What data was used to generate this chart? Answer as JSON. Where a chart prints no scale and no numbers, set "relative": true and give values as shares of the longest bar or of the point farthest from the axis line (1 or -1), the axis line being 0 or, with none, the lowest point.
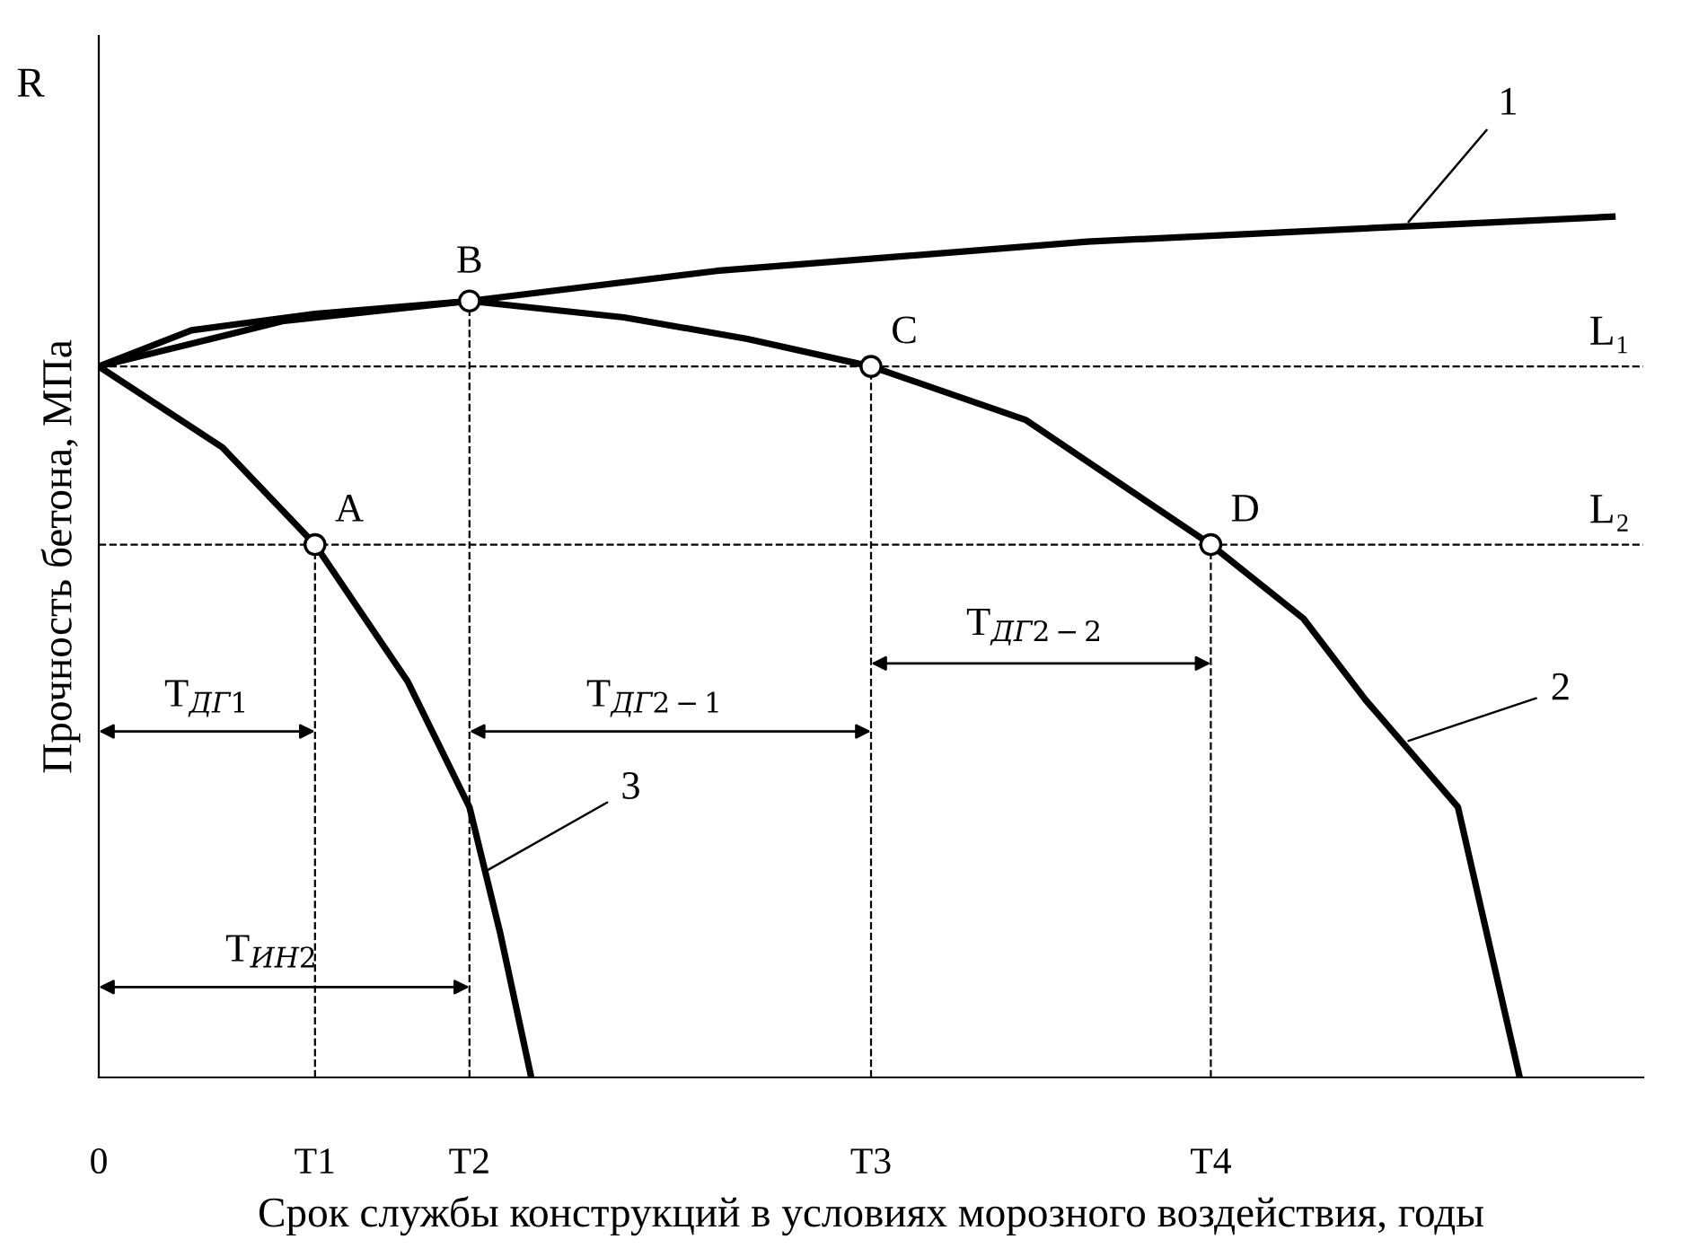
{
  "chart_data": {
    "type": "line",
    "relative": true,
    "xlabel": "Срок службы конструкций в условиях морозного воздействия, годы",
    "ylabel": "Прочность бетона, МПа",
    "categories": [
      "0",
      null,
      null,
      null,
      null,
      null,
      null,
      "T1",
      null,
      null,
      null,
      null,
      "T2",
      null,
      null,
      null,
      null,
      null,
      null,
      null,
      null,
      null,
      null,
      null,
      null,
      "T3",
      null,
      null,
      null,
      null,
      null,
      null,
      null,
      null,
      null,
      null,
      "T4",
      null,
      null,
      null,
      null,
      null,
      null,
      null,
      null,
      null,
      null,
      null,
      null,
      null,
      null
    ],
    "grid": false,
    "legend": false,
    "marker": "none",
    "line_style": "solid",
    "series": [
      {
        "color": "#000000",
        "values": [
          0.826,
          null,
          null,
          0.868,
          null,
          null,
          null,
          0.887,
          null,
          null,
          null,
          null,
          0.902,
          null,
          null,
          null,
          null,
          null,
          null,
          null,
          0.937,
          null,
          null,
          null,
          null,
          null,
          null,
          null,
          null,
          null,
          null,
          null,
          0.971,
          null,
          null,
          null,
          null,
          null,
          null,
          null,
          null,
          null,
          null,
          null,
          null,
          null,
          null,
          null,
          null,
          1,
          null
        ]
      },
      {
        "color": "#000000",
        "values": [
          0.826,
          null,
          null,
          null,
          null,
          null,
          0.879,
          null,
          null,
          null,
          null,
          null,
          0.902,
          null,
          null,
          null,
          null,
          0.883,
          null,
          null,
          null,
          0.858,
          null,
          null,
          null,
          0.826,
          null,
          null,
          null,
          null,
          0.764,
          null,
          null,
          null,
          null,
          null,
          0.619,
          null,
          null,
          0.533,
          null,
          0.439,
          null,
          null,
          0.314,
          null,
          0,
          null,
          null,
          null,
          null
        ]
      },
      {
        "color": "#000000",
        "values": [
          0.826,
          null,
          null,
          null,
          0.732,
          null,
          null,
          0.619,
          null,
          null,
          0.46,
          null,
          0.314,
          0.167,
          0,
          null,
          null,
          null,
          null,
          null,
          null,
          null,
          null,
          null,
          null,
          null,
          null,
          null,
          null,
          null,
          null,
          null,
          null,
          null,
          null,
          null,
          null,
          null,
          null,
          null,
          null,
          null,
          null,
          null,
          null,
          null,
          null,
          null,
          null,
          null,
          null
        ]
      },
      {
        "color": "#000000",
        "marker": "triangle",
        "values": [
          0.402,
          null,
          null,
          null,
          null,
          null,
          null,
          0.402,
          null,
          null,
          null,
          null,
          null,
          null,
          null,
          null,
          null,
          null,
          null,
          null,
          null,
          null,
          null,
          null,
          null,
          null,
          null,
          null,
          null,
          null,
          null,
          null,
          null,
          null,
          null,
          null,
          null,
          null,
          null,
          null,
          null,
          null,
          null,
          null,
          null,
          null,
          null,
          null,
          null,
          null,
          null
        ]
      },
      {
        "color": "#000000",
        "marker": "triangle",
        "values": [
          0.105,
          null,
          null,
          null,
          null,
          null,
          null,
          null,
          null,
          null,
          null,
          null,
          0.105,
          null,
          null,
          null,
          null,
          null,
          null,
          null,
          null,
          null,
          null,
          null,
          null,
          null,
          null,
          null,
          null,
          null,
          null,
          null,
          null,
          null,
          null,
          null,
          null,
          null,
          null,
          null,
          null,
          null,
          null,
          null,
          null,
          null,
          null,
          null,
          null,
          null,
          null
        ]
      },
      {
        "color": "#000000",
        "marker": "triangle",
        "values": [
          null,
          null,
          null,
          null,
          null,
          null,
          null,
          null,
          null,
          null,
          null,
          null,
          0.402,
          null,
          null,
          null,
          null,
          null,
          null,
          null,
          null,
          null,
          null,
          null,
          null,
          0.402,
          null,
          null,
          null,
          null,
          null,
          null,
          null,
          null,
          null,
          null,
          null,
          null,
          null,
          null,
          null,
          null,
          null,
          null,
          null,
          null,
          null,
          null,
          null,
          null,
          null
        ]
      },
      {
        "color": "#000000",
        "marker": "triangle",
        "values": [
          null,
          null,
          null,
          null,
          null,
          null,
          null,
          null,
          null,
          null,
          null,
          null,
          null,
          null,
          null,
          null,
          null,
          null,
          null,
          null,
          null,
          null,
          null,
          null,
          null,
          0.481,
          null,
          null,
          null,
          null,
          null,
          null,
          null,
          null,
          null,
          null,
          0.481,
          null,
          null,
          null,
          null,
          null,
          null,
          null,
          null,
          null,
          null,
          null,
          null,
          null,
          null
        ]
      }
    ],
    "ref_lines": [
      {
        "axis": "y",
        "value": 0.826,
        "label": "L₁",
        "line_style": "dashed"
      },
      {
        "axis": "y",
        "value": 0.619,
        "label": "L₂",
        "line_style": "dashed"
      },
      {
        "axis": "x",
        "value": "T1",
        "line_style": "dashed"
      },
      {
        "axis": "x",
        "value": "T2",
        "line_style": "dashed"
      },
      {
        "axis": "x",
        "value": "T3",
        "line_style": "dashed"
      },
      {
        "axis": "x",
        "value": "T4",
        "line_style": "dashed"
      }
    ],
    "annotations": [
      "R",
      "T$_{ДГ1}$",
      "T$_{ИН2}$",
      "T$_{ДГ2−1}$",
      "T$_{ДГ2−2}$",
      "1",
      "2",
      "3",
      {
        "text": "A",
        "x": "T1",
        "y": 0.619
      },
      {
        "text": "B",
        "x": "T2",
        "y": 0.902
      },
      {
        "text": "C",
        "x": "T3",
        "y": 0.826
      },
      {
        "text": "D",
        "x": "T4",
        "y": 0.619
      }
    ]
  }
}
